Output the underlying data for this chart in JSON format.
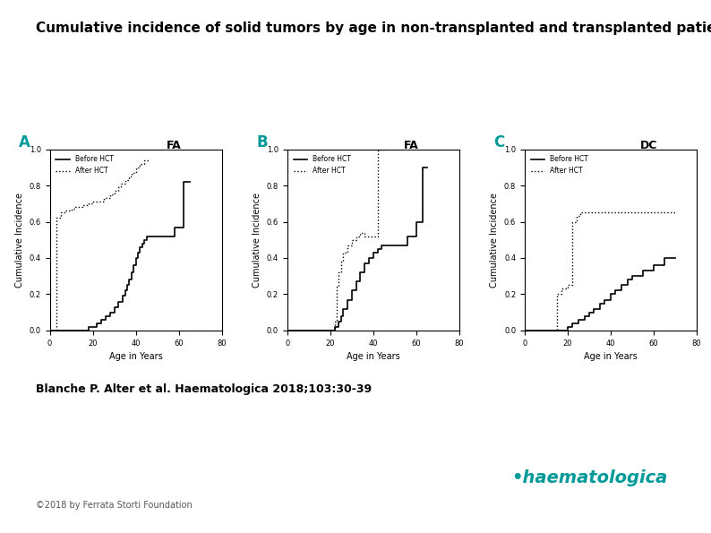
{
  "title": "Cumulative incidence of solid tumors by age in non-transplanted and transplanted patients.",
  "title_fontsize": 11,
  "title_color": "#000000",
  "citation": "Blanche P. Alter et al. Haematologica 2018;103:30-39",
  "footer": "©2018 by Ferrata Storti Foundation",
  "panels": [
    {
      "label": "A",
      "label_color": "#009999",
      "subtitle": "FA",
      "xlim": [
        0,
        80
      ],
      "ylim": [
        0,
        1
      ],
      "xticks": [
        0,
        20,
        40,
        60,
        80
      ],
      "yticks": [
        0,
        0.2,
        0.4,
        0.6,
        0.8,
        1
      ],
      "xlabel": "Age in Years",
      "ylabel": "Cumulative Incidence",
      "before_hct_x": [
        0,
        0,
        18,
        18,
        22,
        22,
        24,
        24,
        26,
        26,
        28,
        28,
        30,
        30,
        32,
        32,
        34,
        34,
        35,
        35,
        36,
        36,
        37,
        37,
        38,
        38,
        39,
        39,
        40,
        40,
        41,
        41,
        42,
        42,
        43,
        43,
        44,
        44,
        45,
        45,
        46,
        46,
        58,
        58,
        62,
        62,
        65
      ],
      "before_hct_y": [
        0,
        0,
        0,
        0.02,
        0.02,
        0.04,
        0.04,
        0.06,
        0.06,
        0.08,
        0.08,
        0.1,
        0.1,
        0.13,
        0.13,
        0.16,
        0.16,
        0.19,
        0.19,
        0.22,
        0.22,
        0.25,
        0.25,
        0.28,
        0.28,
        0.32,
        0.32,
        0.36,
        0.36,
        0.4,
        0.4,
        0.43,
        0.43,
        0.46,
        0.46,
        0.48,
        0.48,
        0.5,
        0.5,
        0.52,
        0.52,
        0.52,
        0.52,
        0.57,
        0.57,
        0.82,
        0.82
      ],
      "after_hct_x": [
        0,
        0,
        3,
        3,
        5,
        5,
        7,
        7,
        10,
        10,
        12,
        12,
        15,
        15,
        18,
        18,
        20,
        20,
        25,
        25,
        28,
        28,
        30,
        30,
        32,
        32,
        33,
        33,
        35,
        35,
        37,
        37,
        38,
        38,
        40,
        40,
        42,
        42,
        44,
        44,
        46,
        46
      ],
      "after_hct_y": [
        0,
        0,
        0,
        0.62,
        0.62,
        0.65,
        0.65,
        0.66,
        0.66,
        0.67,
        0.67,
        0.68,
        0.68,
        0.69,
        0.69,
        0.7,
        0.7,
        0.71,
        0.71,
        0.73,
        0.73,
        0.75,
        0.75,
        0.77,
        0.77,
        0.79,
        0.79,
        0.81,
        0.81,
        0.83,
        0.83,
        0.85,
        0.85,
        0.87,
        0.87,
        0.9,
        0.9,
        0.92,
        0.92,
        0.94,
        0.94,
        0.94
      ]
    },
    {
      "label": "B",
      "label_color": "#009999",
      "subtitle": "FA",
      "xlim": [
        0,
        80
      ],
      "ylim": [
        0,
        1
      ],
      "xticks": [
        0,
        20,
        40,
        60,
        80
      ],
      "yticks": [
        0,
        0.2,
        0.4,
        0.6,
        0.8,
        1
      ],
      "xlabel": "Age in Years",
      "ylabel": "Cumulative Incidence",
      "before_hct_x": [
        0,
        0,
        22,
        22,
        24,
        24,
        25,
        25,
        26,
        26,
        28,
        28,
        30,
        30,
        32,
        32,
        34,
        34,
        36,
        36,
        38,
        38,
        40,
        40,
        42,
        42,
        44,
        44,
        56,
        56,
        60,
        60,
        63,
        63,
        65
      ],
      "before_hct_y": [
        0,
        0,
        0,
        0.02,
        0.02,
        0.05,
        0.05,
        0.08,
        0.08,
        0.12,
        0.12,
        0.17,
        0.17,
        0.22,
        0.22,
        0.27,
        0.27,
        0.32,
        0.32,
        0.37,
        0.37,
        0.4,
        0.4,
        0.43,
        0.43,
        0.45,
        0.45,
        0.47,
        0.47,
        0.52,
        0.52,
        0.6,
        0.6,
        0.9,
        0.9
      ],
      "after_hct_x": [
        0,
        0,
        22,
        22,
        23,
        23,
        24,
        24,
        25,
        25,
        26,
        26,
        28,
        28,
        30,
        30,
        32,
        32,
        34,
        34,
        36,
        36,
        38,
        38,
        40,
        40,
        42,
        42,
        43,
        43,
        45
      ],
      "after_hct_y": [
        0,
        0,
        0,
        0.05,
        0.05,
        0.24,
        0.24,
        0.32,
        0.32,
        0.38,
        0.38,
        0.43,
        0.43,
        0.47,
        0.47,
        0.5,
        0.5,
        0.52,
        0.52,
        0.54,
        0.54,
        0.52,
        0.52,
        0.52,
        0.52,
        0.52,
        0.52,
        1.0,
        1.0,
        1.0,
        1.0
      ]
    },
    {
      "label": "C",
      "label_color": "#009999",
      "subtitle": "DC",
      "xlim": [
        0,
        80
      ],
      "ylim": [
        0,
        1
      ],
      "xticks": [
        0,
        20,
        40,
        60,
        80
      ],
      "yticks": [
        0,
        0.2,
        0.4,
        0.6,
        0.8,
        1
      ],
      "xlabel": "Age in Years",
      "ylabel": "Cumulative Incidence",
      "before_hct_x": [
        0,
        0,
        20,
        20,
        22,
        22,
        25,
        25,
        28,
        28,
        30,
        30,
        32,
        32,
        35,
        35,
        37,
        37,
        40,
        40,
        42,
        42,
        45,
        45,
        48,
        48,
        50,
        50,
        55,
        55,
        60,
        60,
        65,
        65,
        70
      ],
      "before_hct_y": [
        0,
        0,
        0,
        0.02,
        0.02,
        0.04,
        0.04,
        0.06,
        0.06,
        0.08,
        0.08,
        0.1,
        0.1,
        0.12,
        0.12,
        0.15,
        0.15,
        0.17,
        0.17,
        0.2,
        0.2,
        0.22,
        0.22,
        0.25,
        0.25,
        0.28,
        0.28,
        0.3,
        0.3,
        0.33,
        0.33,
        0.36,
        0.36,
        0.4,
        0.4
      ],
      "after_hct_x": [
        0,
        0,
        15,
        15,
        17,
        17,
        20,
        20,
        22,
        22,
        24,
        24,
        26,
        26,
        28,
        28,
        30,
        30,
        32,
        32,
        35,
        35,
        40,
        40,
        45,
        45,
        50,
        50,
        55,
        55,
        70
      ],
      "after_hct_y": [
        0,
        0,
        0,
        0.2,
        0.2,
        0.23,
        0.23,
        0.25,
        0.25,
        0.6,
        0.6,
        0.63,
        0.63,
        0.65,
        0.65,
        0.65,
        0.65,
        0.65,
        0.65,
        0.65,
        0.65,
        0.65,
        0.65,
        0.65,
        0.65,
        0.65,
        0.65,
        0.65,
        0.65,
        0.65,
        0.65
      ]
    }
  ],
  "before_hct_style": {
    "color": "#000000",
    "linewidth": 1.2,
    "linestyle": "-"
  },
  "after_hct_style": {
    "color": "#000000",
    "linewidth": 1.0,
    "linestyle": ":"
  },
  "legend_before": "Before HCT",
  "legend_after": "After HCT",
  "bg_color": "#ffffff",
  "logo_text": "haematologica",
  "logo_color": "#009999"
}
